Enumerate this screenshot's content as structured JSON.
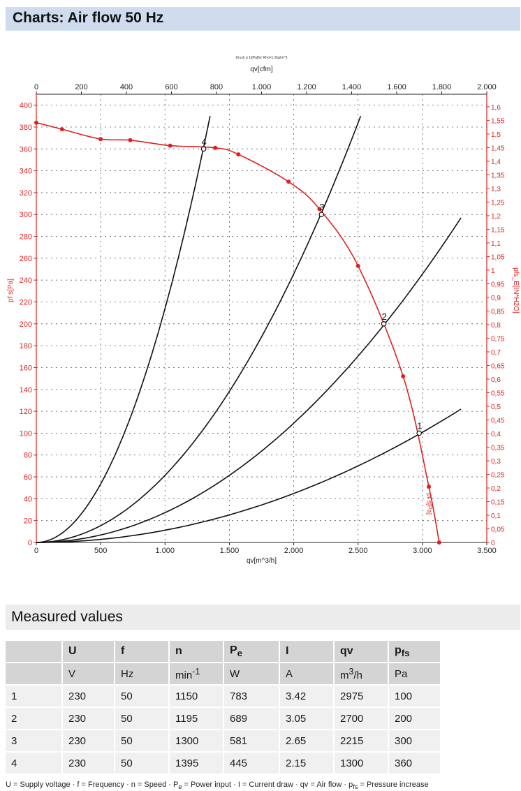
{
  "header": {
    "title": "Charts: Air flow 50 Hz"
  },
  "chart_data": {
    "type": "line",
    "top_caption": "Druck p 1t[Pa]for Rho=1.2kg/m^3",
    "x_bottom": {
      "label": "qv[m^3/h]",
      "range": [
        0,
        3500
      ],
      "ticks": [
        "0",
        "500",
        "1.000",
        "1.500",
        "2.000",
        "2.500",
        "3.000",
        "3.500"
      ]
    },
    "x_top": {
      "label": "qv[cfm]",
      "range": [
        0,
        2000
      ],
      "ticks": [
        "0",
        "200",
        "400",
        "600",
        "800",
        "1.000",
        "1.200",
        "1.400",
        "1.600",
        "1.800",
        "2.000"
      ]
    },
    "y_left": {
      "label": "pf s[Pa]",
      "range": [
        0,
        410
      ],
      "ticks": [
        "0",
        "20",
        "40",
        "60",
        "80",
        "100",
        "120",
        "140",
        "160",
        "180",
        "200",
        "220",
        "240",
        "260",
        "280",
        "300",
        "320",
        "340",
        "360",
        "380",
        "400"
      ]
    },
    "y_right": {
      "label": "pfs_E[IN*H2O]",
      "range": [
        0,
        1.6
      ],
      "ticks": [
        "0",
        "0,05",
        "0,1",
        "0,15",
        "0,2",
        "0,25",
        "0,3",
        "0,35",
        "0,4",
        "0,45",
        "0,5",
        "0,55",
        "0,6",
        "0,65",
        "0,7",
        "0,75",
        "0,8",
        "0,85",
        "0,9",
        "0,95",
        "1",
        "1,05",
        "1,1",
        "1,15",
        "1,2",
        "1,25",
        "1,3",
        "1,35",
        "1,4",
        "1,45",
        "1,5",
        "1,55",
        "1,6"
      ]
    },
    "grid": true,
    "fan_curve": {
      "label": "pf s[Pa]",
      "color": "#e02020",
      "x": [
        0,
        200,
        500,
        730,
        1040,
        1390,
        1570,
        1960,
        2200,
        2500,
        2850,
        3050,
        3130
      ],
      "y": [
        384,
        378,
        369,
        368,
        363,
        361,
        355,
        330,
        305,
        253,
        152,
        51,
        0
      ]
    },
    "system_curves": [
      {
        "label": "1",
        "x": [
          0,
          3300
        ],
        "y": [
          0,
          122
        ],
        "op_x": 2975,
        "op_y": 100
      },
      {
        "label": "2",
        "x": [
          0,
          3300
        ],
        "y": [
          0,
          297
        ],
        "op_x": 2700,
        "op_y": 200
      },
      {
        "label": "3",
        "x": [
          0,
          2520
        ],
        "y": [
          0,
          390
        ],
        "op_x": 2215,
        "op_y": 300
      },
      {
        "label": "4",
        "x": [
          0,
          1350
        ],
        "y": [
          0,
          390
        ],
        "op_x": 1300,
        "op_y": 360
      }
    ]
  },
  "measured": {
    "title": "Measured values",
    "header_symbols": [
      "",
      "U",
      "f",
      "n",
      "P",
      "I",
      "qv",
      "p"
    ],
    "header_subs": [
      "",
      "",
      "",
      "",
      "e",
      "",
      "",
      "fs"
    ],
    "unit_base": [
      "",
      "V",
      "Hz",
      "min",
      "W",
      "A",
      "m",
      "Pa"
    ],
    "unit_sup": [
      "",
      "",
      "",
      "-1",
      "",
      "",
      "3",
      ""
    ],
    "unit_tail": [
      "",
      "",
      "",
      "",
      "",
      "",
      "/h",
      ""
    ],
    "rows": [
      [
        "1",
        "230",
        "50",
        "1150",
        "783",
        "3.42",
        "2975",
        "100"
      ],
      [
        "2",
        "230",
        "50",
        "1195",
        "689",
        "3.05",
        "2700",
        "200"
      ],
      [
        "3",
        "230",
        "50",
        "1300",
        "581",
        "2.65",
        "2215",
        "300"
      ],
      [
        "4",
        "230",
        "50",
        "1395",
        "445",
        "2.15",
        "1300",
        "360"
      ]
    ],
    "legend_note_a": "U = Supply voltage · f = Frequency · n = Speed · P",
    "legend_note_pe_sub": "e",
    "legend_note_b": " = Power input · I = Current draw · qv = Air flow · p",
    "legend_note_pfs_sub": "fs",
    "legend_note_c": " = Pressure increase"
  }
}
